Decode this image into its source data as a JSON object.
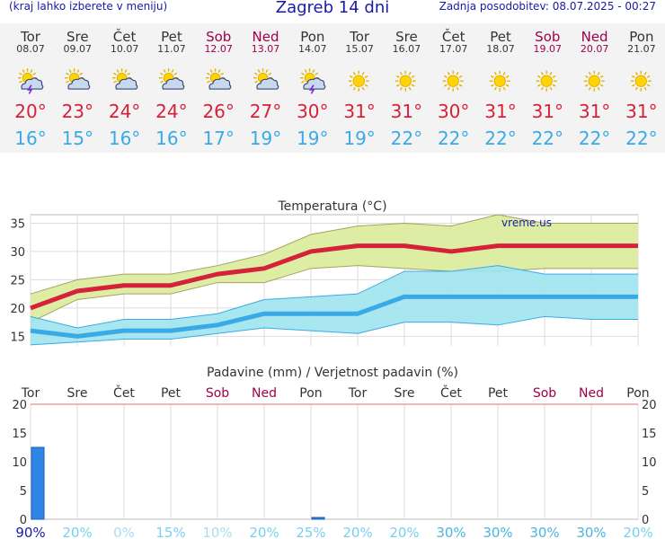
{
  "header": {
    "left_note": "(kraj lahko izberete v meniju)",
    "title": "Zagreb 14 dni",
    "updated": "Zadnja posodobitev: 08.07.2025 - 00:27"
  },
  "days": [
    {
      "name": "Tor",
      "date": "08.07",
      "weekend": false,
      "icon": "storm-sun-icon",
      "max": "20°",
      "min": "16°"
    },
    {
      "name": "Sre",
      "date": "09.07",
      "weekend": false,
      "icon": "cloud-sun-icon",
      "max": "23°",
      "min": "15°"
    },
    {
      "name": "Čet",
      "date": "10.07",
      "weekend": false,
      "icon": "cloud-sun-icon",
      "max": "24°",
      "min": "16°"
    },
    {
      "name": "Pet",
      "date": "11.07",
      "weekend": false,
      "icon": "cloud-sun-icon",
      "max": "24°",
      "min": "16°"
    },
    {
      "name": "Sob",
      "date": "12.07",
      "weekend": true,
      "icon": "cloud-sun-icon",
      "max": "26°",
      "min": "17°"
    },
    {
      "name": "Ned",
      "date": "13.07",
      "weekend": true,
      "icon": "cloud-sun-icon",
      "max": "27°",
      "min": "19°"
    },
    {
      "name": "Pon",
      "date": "14.07",
      "weekend": false,
      "icon": "storm-sun-icon",
      "max": "30°",
      "min": "19°"
    },
    {
      "name": "Tor",
      "date": "15.07",
      "weekend": false,
      "icon": "sun-icon",
      "max": "31°",
      "min": "19°"
    },
    {
      "name": "Sre",
      "date": "16.07",
      "weekend": false,
      "icon": "sun-icon",
      "max": "31°",
      "min": "22°"
    },
    {
      "name": "Čet",
      "date": "17.07",
      "weekend": false,
      "icon": "sun-icon",
      "max": "30°",
      "min": "22°"
    },
    {
      "name": "Pet",
      "date": "18.07",
      "weekend": false,
      "icon": "sun-icon",
      "max": "31°",
      "min": "22°"
    },
    {
      "name": "Sob",
      "date": "19.07",
      "weekend": true,
      "icon": "sun-icon",
      "max": "31°",
      "min": "22°"
    },
    {
      "name": "Ned",
      "date": "20.07",
      "weekend": true,
      "icon": "sun-icon",
      "max": "31°",
      "min": "22°"
    },
    {
      "name": "Pon",
      "date": "21.07",
      "weekend": false,
      "icon": "sun-icon",
      "max": "31°",
      "min": "22°"
    }
  ],
  "colors": {
    "max": "#d6213b",
    "min": "#3aaae6",
    "weekend": "#a0004b",
    "rain_bar": "#2f86e6",
    "max_band": "#d9ec9a",
    "min_band": "#9ee3ee"
  },
  "chart_data": [
    {
      "type": "line",
      "title": "Temperatura (°C)",
      "watermark": "vreme.us",
      "x": [
        "Tor",
        "Sre",
        "Čet",
        "Pet",
        "Sob",
        "Ned",
        "Pon",
        "Tor",
        "Sre",
        "Čet",
        "Pet",
        "Sob",
        "Ned",
        "Pon"
      ],
      "ylim": [
        13,
        36.5
      ],
      "yticks": [
        15,
        20,
        25,
        30,
        35
      ],
      "grid": true,
      "series": [
        {
          "values": [
            20,
            23,
            24,
            24,
            26,
            27,
            30,
            31,
            31,
            30,
            31,
            31,
            31,
            31
          ]
        },
        {
          "values": [
            16,
            15,
            16,
            16,
            17,
            19,
            19,
            19,
            22,
            22,
            22,
            22,
            22,
            22
          ]
        }
      ],
      "bands": [
        {
          "upper": [
            22.5,
            25,
            26,
            26,
            27.5,
            29.5,
            33,
            34.5,
            35,
            34.5,
            36.5,
            35,
            35,
            35
          ],
          "lower": [
            17.5,
            21.5,
            22.5,
            22.5,
            24.5,
            24.5,
            27,
            27.5,
            27,
            26.5,
            26.5,
            27,
            27,
            27
          ]
        },
        {
          "upper": [
            18.5,
            16.5,
            18,
            18,
            19,
            21.5,
            22,
            22.5,
            26.5,
            26.5,
            27.5,
            26,
            26,
            26
          ],
          "lower": [
            13.5,
            14,
            14.5,
            14.5,
            15.5,
            16.5,
            16,
            15.5,
            17.5,
            17.5,
            17,
            18.5,
            18,
            18
          ]
        }
      ]
    },
    {
      "type": "bar",
      "title": "Padavine (mm) / Verjetnost padavin (%)",
      "categories": [
        "Tor",
        "Sre",
        "Čet",
        "Pet",
        "Sob",
        "Ned",
        "Pon",
        "Tor",
        "Sre",
        "Čet",
        "Pet",
        "Sob",
        "Ned",
        "Pon"
      ],
      "values": [
        12.5,
        0,
        0,
        0,
        0,
        0,
        0.3,
        0,
        0,
        0,
        0,
        0,
        0,
        0
      ],
      "ylim": [
        0,
        20
      ],
      "yticks": [
        0,
        5,
        10,
        15,
        20
      ],
      "probabilities": [
        "90%",
        "20%",
        "0%",
        "15%",
        "10%",
        "20%",
        "25%",
        "20%",
        "20%",
        "30%",
        "30%",
        "30%",
        "30%",
        "20%"
      ],
      "probability_values": [
        90,
        20,
        0,
        15,
        10,
        20,
        25,
        20,
        20,
        30,
        30,
        30,
        30,
        20
      ]
    }
  ]
}
